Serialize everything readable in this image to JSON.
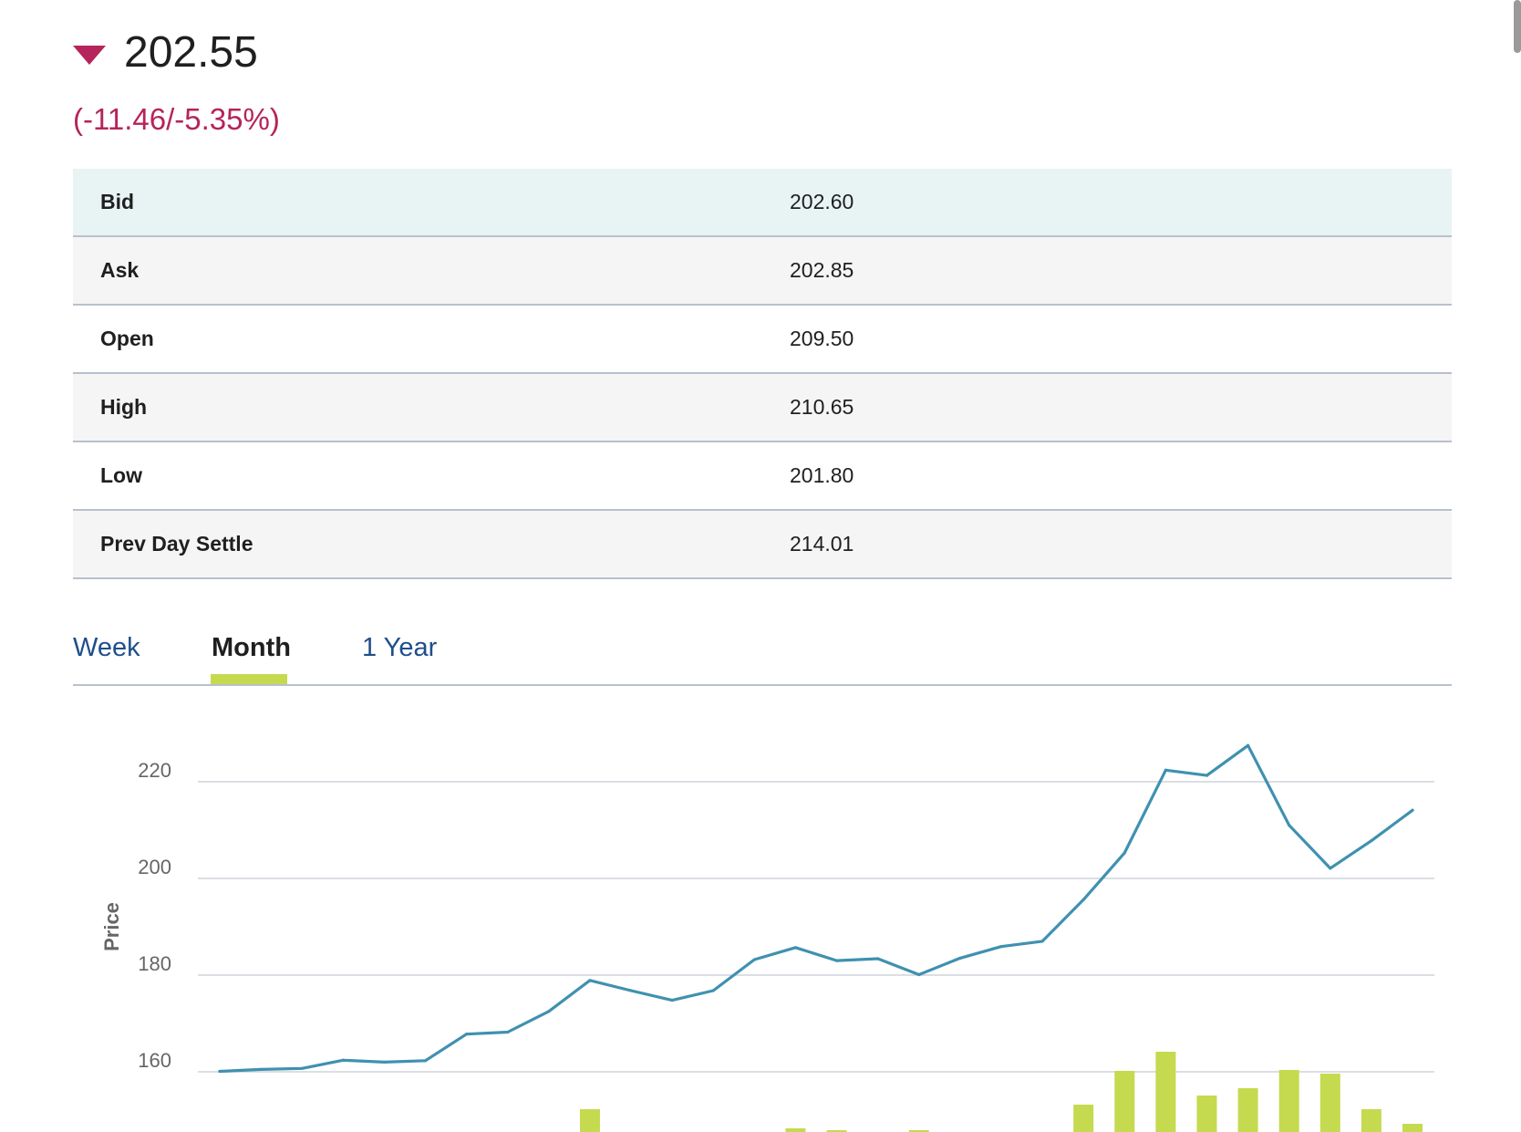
{
  "quote": {
    "last_price": "202.55",
    "change": "(-11.46/-5.35%)",
    "direction_icon": "triangle-down-icon",
    "direction_color": "#b5245a"
  },
  "table": {
    "rows": [
      {
        "label": "Bid",
        "value": "202.60"
      },
      {
        "label": "Ask",
        "value": "202.85"
      },
      {
        "label": "Open",
        "value": "209.50"
      },
      {
        "label": "High",
        "value": "210.65"
      },
      {
        "label": "Low",
        "value": "201.80"
      },
      {
        "label": "Prev Day Settle",
        "value": "214.01"
      }
    ]
  },
  "tabs": {
    "items": [
      {
        "label": "Week"
      },
      {
        "label": "Month",
        "active": true
      },
      {
        "label": "1 Year"
      }
    ],
    "active_color": "#c5da4f",
    "link_color": "#1f4e8c"
  },
  "chart_data": {
    "type": "line",
    "ylabel": "Price",
    "xlabel": "",
    "y_ticks": [
      "220",
      "200",
      "180",
      "160"
    ],
    "ylim": [
      155,
      229
    ],
    "grid": true,
    "line_color": "#3f91b0",
    "volume_color": "#c5da4f",
    "series": [
      {
        "values": [
          160.1,
          160.5,
          160.7,
          162.4,
          162.0,
          162.3,
          167.8,
          168.2,
          172.5,
          178.9,
          176.8,
          174.8,
          176.8,
          183.2,
          185.7,
          183.0,
          183.4,
          180.1,
          183.5,
          185.9,
          187.0,
          195.6,
          205.3,
          222.4,
          221.3,
          227.5,
          211.0,
          202.1,
          207.8,
          214.1
        ]
      }
    ],
    "volume": {
      "values": [
        0,
        0,
        0,
        0,
        0,
        0,
        0,
        0,
        0,
        25,
        0,
        0,
        0,
        0,
        4,
        2,
        0,
        2,
        0,
        0,
        0,
        30,
        67,
        88,
        40,
        48,
        68,
        64,
        25,
        9
      ]
    }
  }
}
